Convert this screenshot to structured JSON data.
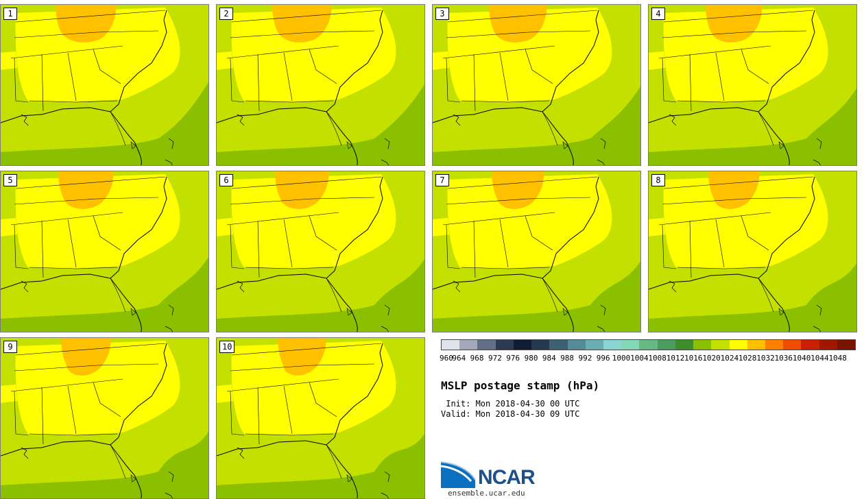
{
  "panels": [
    "1",
    "2",
    "3",
    "4",
    "5",
    "6",
    "7",
    "8",
    "9",
    "10"
  ],
  "colorbar": {
    "ticks": [
      "960",
      "964",
      "968",
      "972",
      "976",
      "980",
      "984",
      "988",
      "992",
      "996",
      "1000",
      "1004",
      "1008",
      "1012",
      "1016",
      "1020",
      "1024",
      "1028",
      "1032",
      "1036",
      "1040",
      "1044",
      "1048"
    ],
    "colors": [
      "#dfe3ea",
      "#a3a8ba",
      "#656e87",
      "#2c3a53",
      "#111d33",
      "#24394e",
      "#3d6073",
      "#558a96",
      "#6aaeb2",
      "#8ad5d2",
      "#85d7b9",
      "#66b985",
      "#4b9d5e",
      "#3f8e2b",
      "#8ac000",
      "#c3e000",
      "#ffff00",
      "#ffc000",
      "#ff8000",
      "#f04c00",
      "#c82000",
      "#a01800",
      "#781400"
    ]
  },
  "title": "MSLP postage stamp (hPa)",
  "init": " Init: Mon 2018-04-30 00 UTC",
  "valid": "Valid: Mon 2018-04-30 09 UTC",
  "logo_text": "NCAR",
  "site": "ensemble.ucar.edu",
  "colors": {
    "c1020": "#8ac000",
    "c1024": "#c3e000",
    "c1028": "#ffff00",
    "c1032": "#ffc000"
  }
}
